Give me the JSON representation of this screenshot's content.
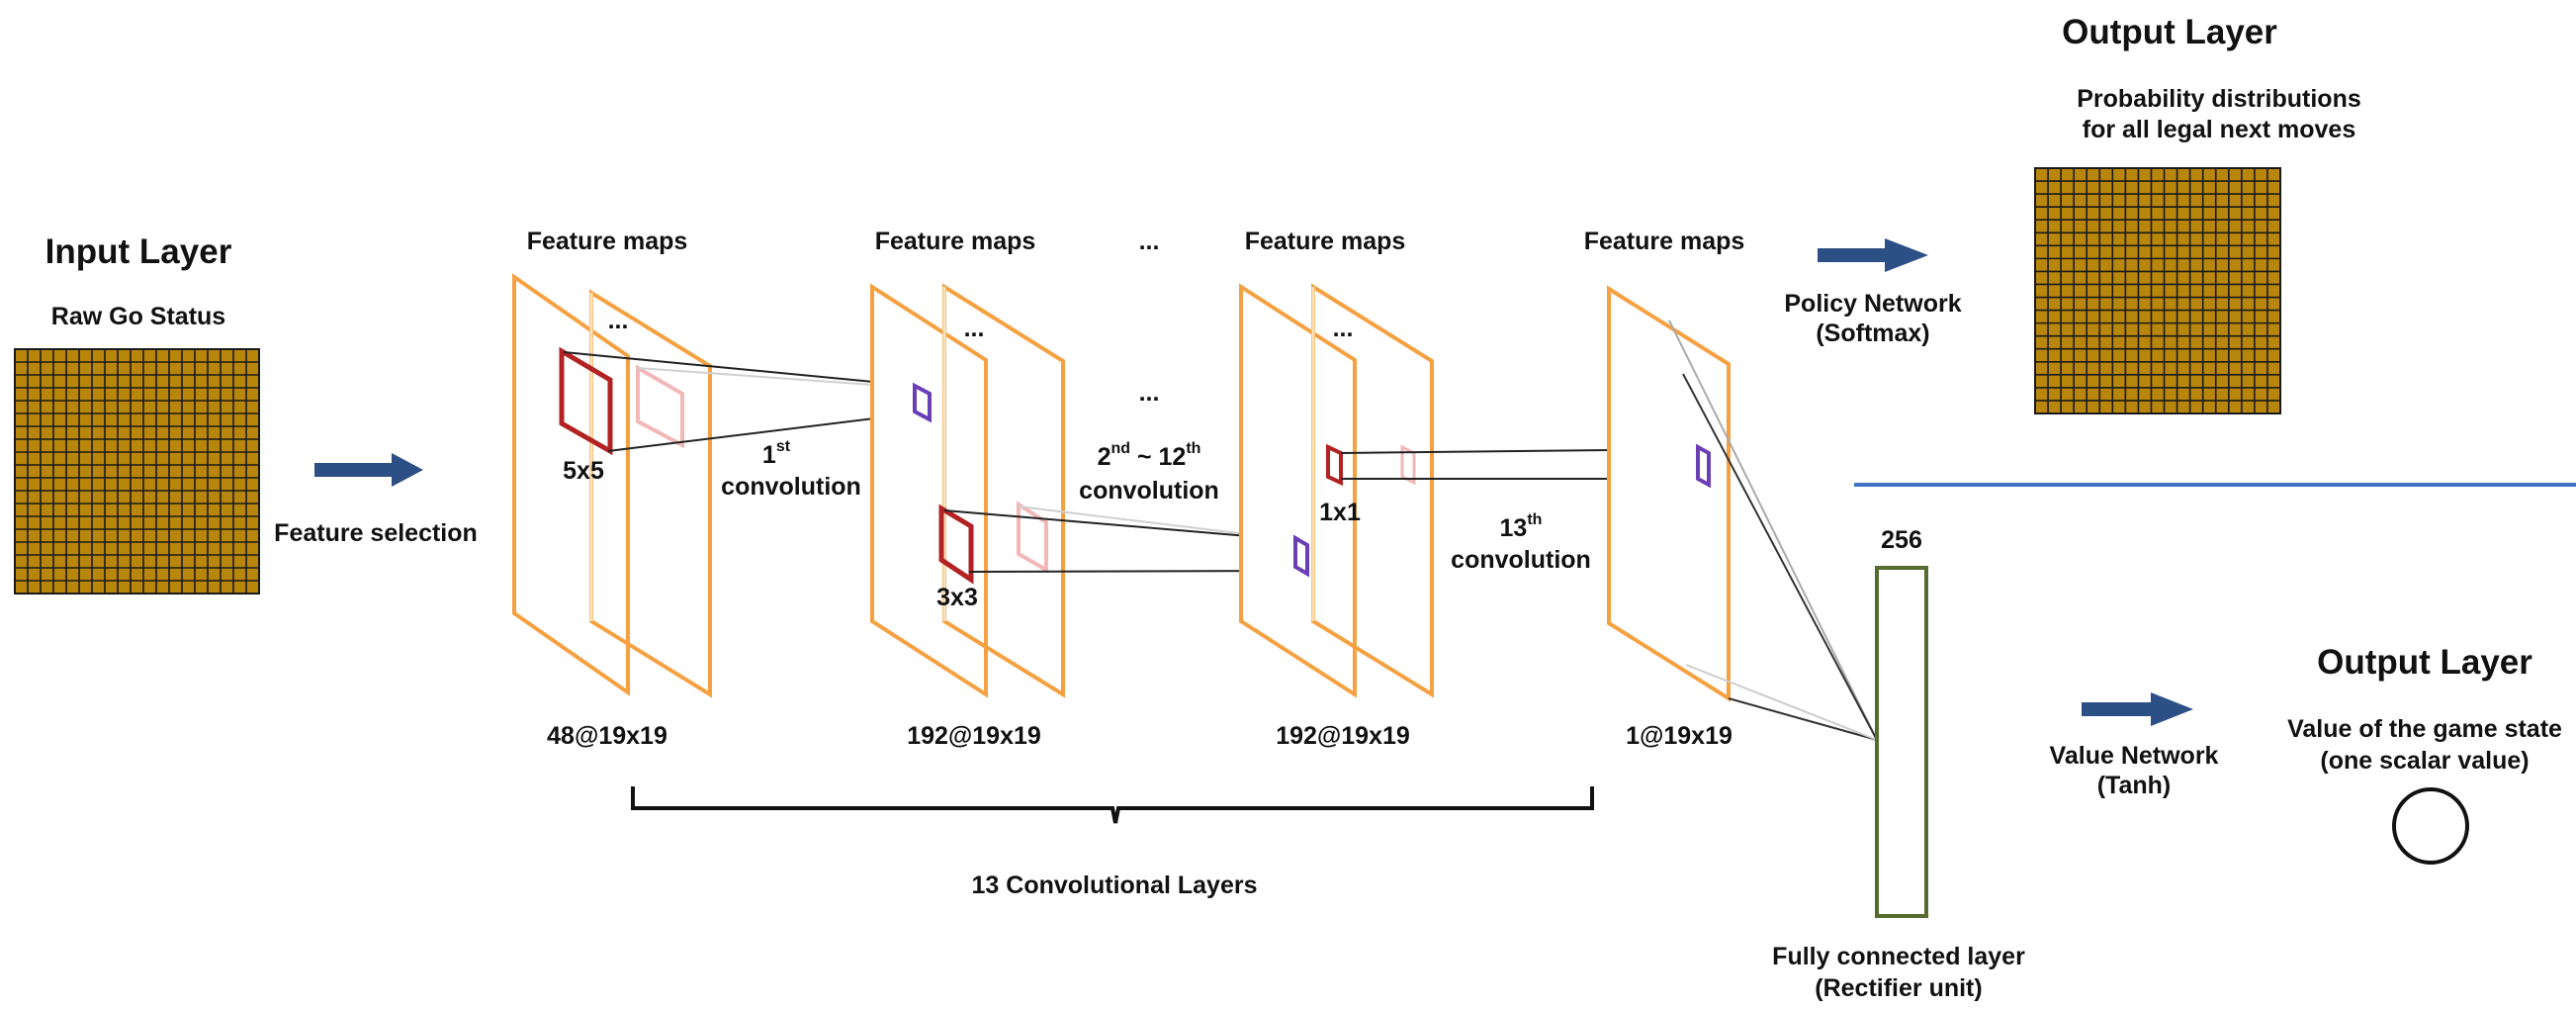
{
  "input_layer": {
    "title": "Input Layer",
    "subtitle": "Raw Go Status"
  },
  "feature_selection": "Feature selection",
  "feature_maps_label": "Feature maps",
  "ellipsis": "...",
  "kernels": {
    "k5": "5x5",
    "k3": "3x3",
    "k1": "1x1"
  },
  "convolutions": {
    "first": {
      "sup": "st",
      "line2": "convolution",
      "num": "1"
    },
    "middle": {
      "num_a": "2",
      "sup_a": "nd",
      "sep": " ~ 12",
      "sup_b": "th",
      "line2": "convolution"
    },
    "last": {
      "num": "13",
      "sup": "th",
      "line2": "convolution"
    }
  },
  "layer_sizes": [
    "48@19x19",
    "192@19x19",
    "192@19x19",
    "1@19x19"
  ],
  "conv_layers_caption": "13 Convolutional Layers",
  "policy": {
    "line1": "Policy Network",
    "line2": "(Softmax)"
  },
  "output_policy": {
    "title": "Output Layer",
    "line1": "Probability distributions",
    "line2": "for all legal next moves"
  },
  "fc": {
    "units": "256",
    "line1": "Fully connected layer",
    "line2": "(Rectifier unit)"
  },
  "value": {
    "line1": "Value Network",
    "line2": "(Tanh)"
  },
  "output_value": {
    "title": "Output Layer",
    "line1": "Value of the game state",
    "line2": "(one scalar value)"
  },
  "board_size": 19,
  "colors": {
    "board": "#b8860b",
    "grid": "#1a1a1a",
    "plane": "#f5a142",
    "plane_light": "#fbe3bd",
    "kernel": "#b22222",
    "kernel_light": "#f2b7b7",
    "target": "#6a3fb5",
    "arrow": "#2c4f86",
    "divider": "#4472c4",
    "fc": "#556b2f"
  }
}
